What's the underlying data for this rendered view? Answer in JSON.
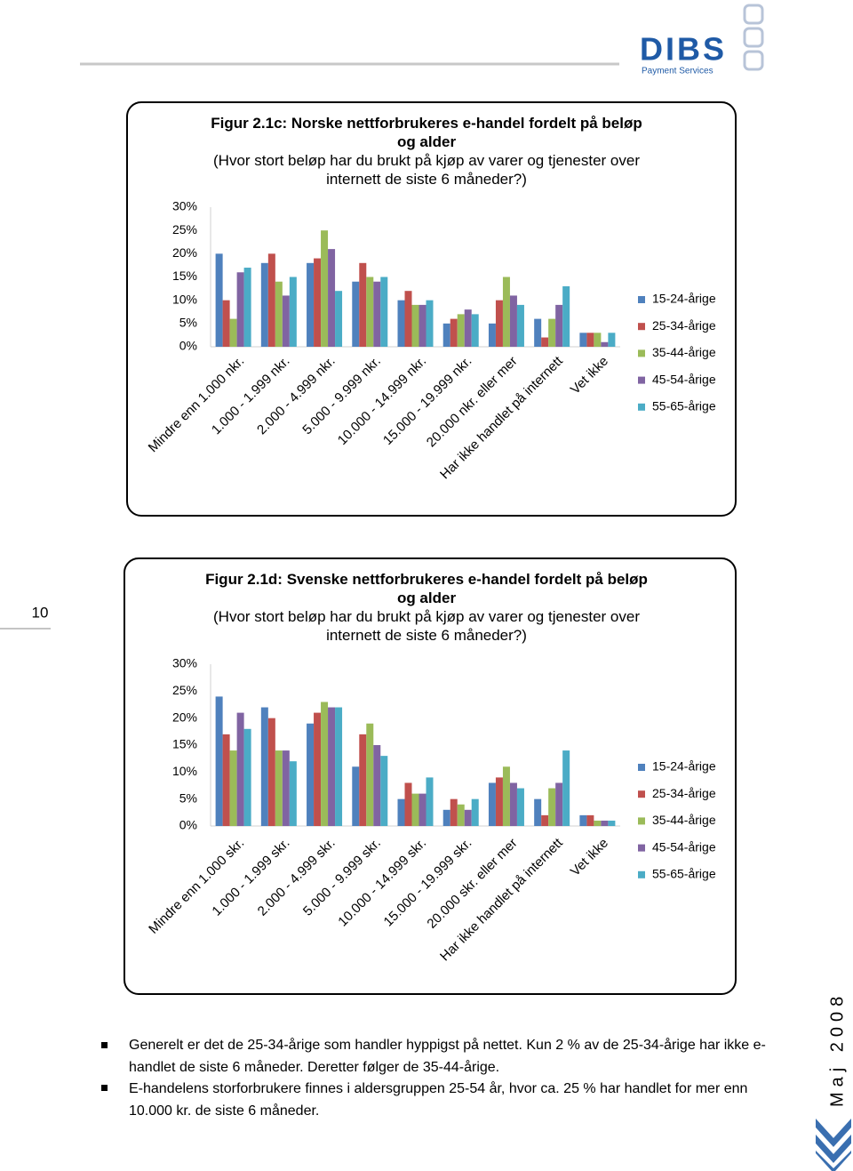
{
  "header": {
    "logo": "DIBS",
    "logo_sub": "Payment Services"
  },
  "page_number": "10",
  "side_text": "Maj 2008",
  "chart_data": [
    {
      "type": "bar",
      "title": "Figur 2.1c: Norske nettforbrukeres e-handel fordelt på beløp og alder",
      "subtitle": "(Hvor stort beløp har du brukt på kjøp av varer og tjenester over internett de siste 6 måneder?)",
      "categories": [
        "Mindre enn 1.000 nkr.",
        "1.000 - 1.999 nkr.",
        "2.000 - 4.999 nkr.",
        "5.000 - 9.999 nkr.",
        "10.000 - 14.999 nkr.",
        "15.000 - 19.999 nkr.",
        "20.000 nkr. eller mer",
        "Har ikke handlet på internett",
        "Vet ikke"
      ],
      "series": [
        {
          "name": "15-24-årige",
          "color": "#4f81bd",
          "values": [
            20,
            18,
            18,
            14,
            10,
            5,
            5,
            6,
            3
          ]
        },
        {
          "name": "25-34-årige",
          "color": "#c0504d",
          "values": [
            10,
            20,
            19,
            18,
            12,
            6,
            10,
            2,
            3
          ]
        },
        {
          "name": "35-44-årige",
          "color": "#9bbb59",
          "values": [
            6,
            14,
            25,
            15,
            9,
            7,
            15,
            6,
            3
          ]
        },
        {
          "name": "45-54-årige",
          "color": "#8064a2",
          "values": [
            16,
            11,
            21,
            14,
            9,
            8,
            11,
            9,
            1
          ]
        },
        {
          "name": "55-65-årige",
          "color": "#4bacc6",
          "values": [
            17,
            15,
            12,
            15,
            10,
            7,
            9,
            13,
            3
          ]
        }
      ],
      "ylim": [
        0,
        30
      ],
      "yticks": [
        {
          "value": 0,
          "label": "0%"
        },
        {
          "value": 5,
          "label": "5%"
        },
        {
          "value": 10,
          "label": "10%"
        },
        {
          "value": 15,
          "label": "15%"
        },
        {
          "value": 20,
          "label": "20%"
        },
        {
          "value": 25,
          "label": "25%"
        },
        {
          "value": 30,
          "label": "30%"
        }
      ],
      "legend": "right"
    },
    {
      "type": "bar",
      "title": "Figur 2.1d: Svenske nettforbrukeres e-handel fordelt på beløp og alder",
      "subtitle": "(Hvor stort beløp har du brukt på kjøp av varer og tjenester over internett de siste 6 måneder?)",
      "categories": [
        "Mindre enn 1.000 skr.",
        "1.000 - 1.999 skr.",
        "2.000 - 4.999 skr.",
        "5.000 - 9.999 skr.",
        "10.000 - 14.999 skr.",
        "15.000 - 19.999 skr.",
        "20.000 skr. eller mer",
        "Har ikke handlet på internett",
        "Vet ikke"
      ],
      "series": [
        {
          "name": "15-24-årige",
          "color": "#4f81bd",
          "values": [
            24,
            22,
            19,
            11,
            5,
            3,
            8,
            5,
            2
          ]
        },
        {
          "name": "25-34-årige",
          "color": "#c0504d",
          "values": [
            17,
            20,
            21,
            17,
            8,
            5,
            9,
            2,
            2
          ]
        },
        {
          "name": "35-44-årige",
          "color": "#9bbb59",
          "values": [
            14,
            14,
            23,
            19,
            6,
            4,
            11,
            7,
            1
          ]
        },
        {
          "name": "45-54-årige",
          "color": "#8064a2",
          "values": [
            21,
            14,
            22,
            15,
            6,
            3,
            8,
            8,
            1
          ]
        },
        {
          "name": "55-65-årige",
          "color": "#4bacc6",
          "values": [
            18,
            12,
            22,
            13,
            9,
            5,
            7,
            14,
            1
          ]
        }
      ],
      "ylim": [
        0,
        30
      ],
      "yticks": [
        {
          "value": 0,
          "label": "0%"
        },
        {
          "value": 5,
          "label": "5%"
        },
        {
          "value": 10,
          "label": "10%"
        },
        {
          "value": 15,
          "label": "15%"
        },
        {
          "value": 20,
          "label": "20%"
        },
        {
          "value": 25,
          "label": "25%"
        },
        {
          "value": 30,
          "label": "30%"
        }
      ],
      "legend": "right"
    }
  ],
  "bullets": [
    "Generelt er det de 25-34-årige som handler hyppigst på nettet. Kun 2 % av de 25-34-årige har ikke e-handlet de siste 6 måneder. Deretter følger de 35-44-årige.",
    "E-handelens storforbrukere finnes i aldersgruppen 25-54 år, hvor ca. 25 % har handlet for mer enn 10.000 kr. de siste 6 måneder."
  ]
}
